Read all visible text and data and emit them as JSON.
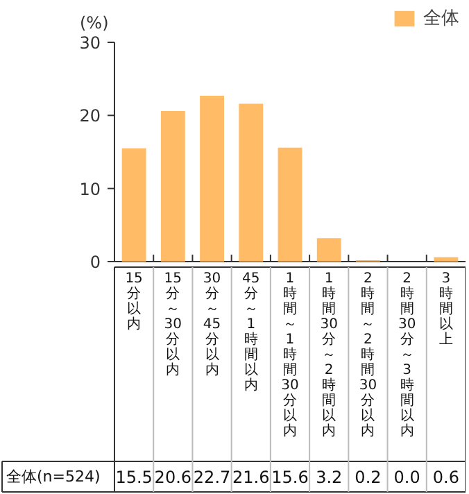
{
  "chart_data": {
    "type": "bar",
    "ylabel": "(%)",
    "categories": [
      "15分以内",
      "15分～30分以内",
      "30分～45分以内",
      "45分～1時間以内",
      "1時間～1時間30分以内",
      "1時間30分～2時間以内",
      "2時間～2時間30分以内",
      "2時間30分～3時間以内",
      "3時間以上"
    ],
    "series": [
      {
        "name": "全体",
        "color": "#ffbb66",
        "values": [
          15.5,
          20.6,
          22.7,
          21.6,
          15.6,
          3.2,
          0.2,
          0.0,
          0.6
        ],
        "value_labels": [
          "15.5",
          "20.6",
          "22.7",
          "21.6",
          "15.6",
          "3.2",
          "0.2",
          "0.0",
          "0.6"
        ]
      }
    ],
    "ylim": [
      0,
      30
    ],
    "yticks": [
      0,
      10,
      20,
      30
    ],
    "grid": false,
    "legend": "top right",
    "annotations": [
      "全体(n=524)"
    ]
  }
}
